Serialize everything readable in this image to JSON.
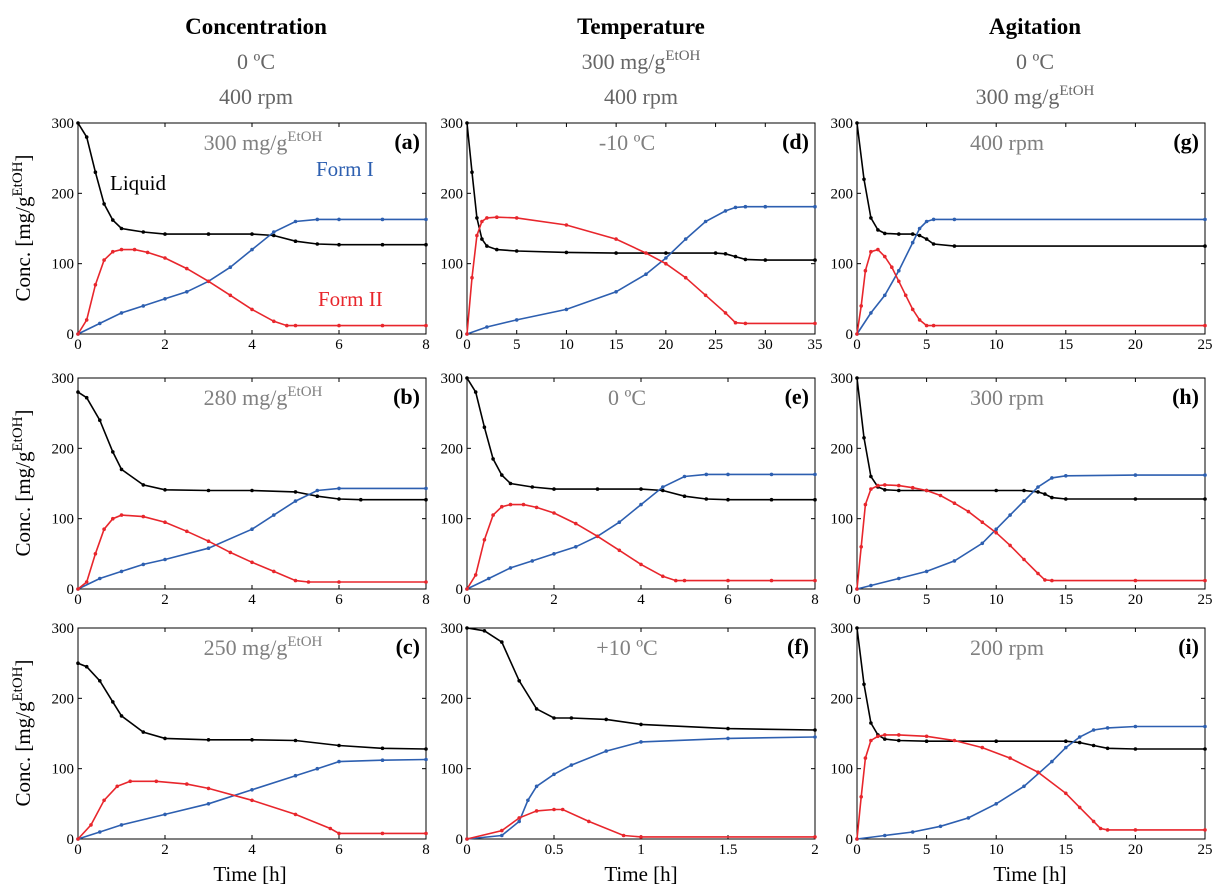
{
  "columns": [
    {
      "title": "Concentration",
      "sub1": "0 ºC",
      "sub2": "400 rpm"
    },
    {
      "title": "Temperature",
      "sub1": "300 mg/g",
      "sub1_sup": "EtOH",
      "sub2": "400 rpm"
    },
    {
      "title": "Agitation",
      "sub1": "0 ºC",
      "sub2": "300 mg/g",
      "sub2_sup": "EtOH"
    }
  ],
  "ylabel": "Conc. [mg/g",
  "ylabel_sup": "EtOH",
  "ylabel_close": "]",
  "xlabel": "Time [h]",
  "annotations": {
    "liquid": "Liquid",
    "form1": "Form I",
    "form2": "Form II"
  },
  "colors": {
    "liquid": "#000000",
    "form1": "#2d5fb0",
    "form2": "#e8262c",
    "label_gray": "#808080"
  },
  "chart_data": [
    {
      "type": "line",
      "panel": "(a)",
      "condition": "300 mg/g",
      "condition_sup": "EtOH",
      "xlim": [
        0,
        8
      ],
      "ylim": [
        0,
        300
      ],
      "xticks": [
        0,
        2,
        4,
        6,
        8
      ],
      "yticks": [
        0,
        100,
        200,
        300
      ],
      "series": [
        {
          "name": "Liquid",
          "x": [
            0,
            0.2,
            0.4,
            0.6,
            0.8,
            1,
            1.5,
            2,
            3,
            4,
            4.5,
            5,
            5.5,
            6,
            7,
            8
          ],
          "y": [
            300,
            280,
            230,
            185,
            162,
            150,
            145,
            142,
            142,
            142,
            140,
            132,
            128,
            127,
            127,
            127
          ]
        },
        {
          "name": "Form I",
          "x": [
            0,
            0.5,
            1,
            1.5,
            2,
            2.5,
            3,
            3.5,
            4,
            4.5,
            5,
            5.5,
            6,
            7,
            8
          ],
          "y": [
            0,
            15,
            30,
            40,
            50,
            60,
            75,
            95,
            120,
            145,
            160,
            163,
            163,
            163,
            163
          ]
        },
        {
          "name": "Form II",
          "x": [
            0,
            0.2,
            0.4,
            0.6,
            0.8,
            1,
            1.3,
            1.6,
            2,
            2.5,
            3,
            3.5,
            4,
            4.5,
            4.8,
            5,
            6,
            7,
            8
          ],
          "y": [
            0,
            20,
            70,
            105,
            117,
            120,
            120,
            116,
            108,
            93,
            75,
            55,
            35,
            18,
            12,
            12,
            12,
            12,
            12
          ]
        }
      ]
    },
    {
      "type": "line",
      "panel": "(b)",
      "condition": "280 mg/g",
      "condition_sup": "EtOH",
      "xlim": [
        0,
        8
      ],
      "ylim": [
        0,
        300
      ],
      "xticks": [
        0,
        2,
        4,
        6,
        8
      ],
      "yticks": [
        0,
        100,
        200,
        300
      ],
      "series": [
        {
          "name": "Liquid",
          "x": [
            0,
            0.2,
            0.5,
            0.8,
            1,
            1.5,
            2,
            3,
            4,
            5,
            5.5,
            6,
            6.5,
            8
          ],
          "y": [
            280,
            272,
            240,
            195,
            170,
            148,
            141,
            140,
            140,
            138,
            132,
            128,
            127,
            127
          ]
        },
        {
          "name": "Form I",
          "x": [
            0,
            0.5,
            1,
            1.5,
            2,
            3,
            4,
            4.5,
            5,
            5.5,
            6,
            8
          ],
          "y": [
            0,
            15,
            25,
            35,
            42,
            58,
            85,
            105,
            125,
            140,
            143,
            143
          ]
        },
        {
          "name": "Form II",
          "x": [
            0,
            0.2,
            0.4,
            0.6,
            0.8,
            1,
            1.5,
            2,
            2.5,
            3,
            3.5,
            4,
            4.5,
            5,
            5.3,
            6,
            8
          ],
          "y": [
            0,
            10,
            50,
            85,
            100,
            105,
            103,
            95,
            82,
            68,
            52,
            38,
            25,
            12,
            10,
            10,
            10
          ]
        }
      ]
    },
    {
      "type": "line",
      "panel": "(c)",
      "condition": "250 mg/g",
      "condition_sup": "EtOH",
      "xlim": [
        0,
        8
      ],
      "ylim": [
        0,
        300
      ],
      "xticks": [
        0,
        2,
        4,
        6,
        8
      ],
      "yticks": [
        0,
        100,
        200,
        300
      ],
      "series": [
        {
          "name": "Liquid",
          "x": [
            0,
            0.2,
            0.5,
            0.8,
            1,
            1.5,
            2,
            3,
            4,
            5,
            6,
            7,
            8
          ],
          "y": [
            250,
            245,
            225,
            195,
            175,
            152,
            143,
            141,
            141,
            140,
            133,
            129,
            128
          ]
        },
        {
          "name": "Form I",
          "x": [
            0,
            0.5,
            1,
            2,
            3,
            4,
            5,
            5.5,
            6,
            7,
            8
          ],
          "y": [
            0,
            10,
            20,
            35,
            50,
            70,
            90,
            100,
            110,
            112,
            113
          ]
        },
        {
          "name": "Form II",
          "x": [
            0,
            0.3,
            0.6,
            0.9,
            1.2,
            1.8,
            2.5,
            3,
            4,
            5,
            5.8,
            6,
            7,
            8
          ],
          "y": [
            0,
            20,
            55,
            75,
            82,
            82,
            78,
            72,
            55,
            35,
            15,
            8,
            8,
            8
          ]
        }
      ]
    },
    {
      "type": "line",
      "panel": "(d)",
      "condition": "-10 ºC",
      "condition_sup": "",
      "xlim": [
        0,
        35
      ],
      "ylim": [
        0,
        300
      ],
      "xticks": [
        0,
        5,
        10,
        15,
        20,
        25,
        30,
        35
      ],
      "yticks": [
        0,
        100,
        200,
        300
      ],
      "series": [
        {
          "name": "Liquid",
          "x": [
            0,
            0.5,
            1,
            1.5,
            2,
            3,
            5,
            10,
            15,
            20,
            25,
            26,
            27,
            28,
            30,
            35
          ],
          "y": [
            300,
            230,
            165,
            135,
            125,
            120,
            118,
            116,
            115,
            115,
            115,
            114,
            110,
            106,
            105,
            105
          ]
        },
        {
          "name": "Form I",
          "x": [
            0,
            2,
            5,
            10,
            15,
            18,
            20,
            22,
            24,
            26,
            27,
            28,
            30,
            35
          ],
          "y": [
            0,
            10,
            20,
            35,
            60,
            85,
            108,
            135,
            160,
            175,
            180,
            181,
            181,
            181
          ]
        },
        {
          "name": "Form II",
          "x": [
            0,
            0.5,
            1,
            1.5,
            2,
            3,
            5,
            10,
            15,
            18,
            20,
            22,
            24,
            26,
            27,
            28,
            35
          ],
          "y": [
            0,
            80,
            140,
            160,
            165,
            166,
            165,
            155,
            135,
            115,
            100,
            80,
            55,
            30,
            16,
            15,
            15
          ]
        }
      ]
    },
    {
      "type": "line",
      "panel": "(e)",
      "condition": "0 ºC",
      "condition_sup": "",
      "xlim": [
        0,
        8
      ],
      "ylim": [
        0,
        300
      ],
      "xticks": [
        0,
        2,
        4,
        6,
        8
      ],
      "yticks": [
        0,
        100,
        200,
        300
      ],
      "series": [
        {
          "name": "Liquid",
          "x": [
            0,
            0.2,
            0.4,
            0.6,
            0.8,
            1,
            1.5,
            2,
            3,
            4,
            4.5,
            5,
            5.5,
            6,
            7,
            8
          ],
          "y": [
            300,
            280,
            230,
            185,
            162,
            150,
            145,
            142,
            142,
            142,
            140,
            132,
            128,
            127,
            127,
            127
          ]
        },
        {
          "name": "Form I",
          "x": [
            0,
            0.5,
            1,
            1.5,
            2,
            2.5,
            3,
            3.5,
            4,
            4.5,
            5,
            5.5,
            6,
            7,
            8
          ],
          "y": [
            0,
            15,
            30,
            40,
            50,
            60,
            75,
            95,
            120,
            145,
            160,
            163,
            163,
            163,
            163
          ]
        },
        {
          "name": "Form II",
          "x": [
            0,
            0.2,
            0.4,
            0.6,
            0.8,
            1,
            1.3,
            1.6,
            2,
            2.5,
            3,
            3.5,
            4,
            4.5,
            4.8,
            5,
            6,
            7,
            8
          ],
          "y": [
            0,
            20,
            70,
            105,
            117,
            120,
            120,
            116,
            108,
            93,
            75,
            55,
            35,
            18,
            12,
            12,
            12,
            12,
            12
          ]
        }
      ]
    },
    {
      "type": "line",
      "panel": "(f)",
      "condition": "+10 ºC",
      "condition_sup": "",
      "xlim": [
        0,
        2
      ],
      "ylim": [
        0,
        300
      ],
      "xticks": [
        0,
        0.5,
        1,
        1.5,
        2
      ],
      "yticks": [
        0,
        100,
        200,
        300
      ],
      "series": [
        {
          "name": "Liquid",
          "x": [
            0,
            0.1,
            0.2,
            0.3,
            0.4,
            0.5,
            0.6,
            0.8,
            1,
            1.5,
            2
          ],
          "y": [
            300,
            296,
            280,
            225,
            185,
            172,
            172,
            170,
            163,
            157,
            155
          ]
        },
        {
          "name": "Form I",
          "x": [
            0,
            0.2,
            0.3,
            0.35,
            0.4,
            0.5,
            0.6,
            0.8,
            1,
            1.5,
            2
          ],
          "y": [
            0,
            5,
            25,
            55,
            75,
            92,
            105,
            125,
            138,
            143,
            145
          ]
        },
        {
          "name": "Form II",
          "x": [
            0,
            0.2,
            0.3,
            0.4,
            0.5,
            0.55,
            0.7,
            0.9,
            1,
            2
          ],
          "y": [
            0,
            12,
            30,
            40,
            42,
            42,
            25,
            5,
            3,
            3
          ]
        }
      ]
    },
    {
      "type": "line",
      "panel": "(g)",
      "condition": "400 rpm",
      "condition_sup": "",
      "xlim": [
        0,
        25
      ],
      "ylim": [
        0,
        300
      ],
      "xticks": [
        0,
        5,
        10,
        15,
        20,
        25
      ],
      "yticks": [
        0,
        100,
        200,
        300
      ],
      "series": [
        {
          "name": "Liquid",
          "x": [
            0,
            0.5,
            1,
            1.5,
            2,
            3,
            4,
            4.5,
            5,
            5.5,
            7,
            25
          ],
          "y": [
            300,
            220,
            165,
            148,
            143,
            142,
            142,
            140,
            135,
            128,
            125,
            125
          ]
        },
        {
          "name": "Form I",
          "x": [
            0,
            1,
            2,
            3,
            4,
            4.5,
            5,
            5.5,
            7,
            25
          ],
          "y": [
            0,
            30,
            55,
            90,
            130,
            150,
            160,
            163,
            163,
            163
          ]
        },
        {
          "name": "Form II",
          "x": [
            0,
            0.3,
            0.6,
            1,
            1.5,
            2,
            2.5,
            3,
            3.5,
            4,
            4.5,
            5,
            5.5,
            25
          ],
          "y": [
            0,
            40,
            90,
            117,
            120,
            110,
            95,
            75,
            55,
            35,
            20,
            12,
            12,
            12
          ]
        }
      ]
    },
    {
      "type": "line",
      "panel": "(h)",
      "condition": "300 rpm",
      "condition_sup": "",
      "xlim": [
        0,
        25
      ],
      "ylim": [
        0,
        300
      ],
      "xticks": [
        0,
        5,
        10,
        15,
        20,
        25
      ],
      "yticks": [
        0,
        100,
        200,
        300
      ],
      "series": [
        {
          "name": "Liquid",
          "x": [
            0,
            0.5,
            1,
            1.5,
            2,
            3,
            5,
            10,
            12,
            13,
            13.5,
            14,
            15,
            20,
            25
          ],
          "y": [
            300,
            215,
            160,
            145,
            141,
            140,
            140,
            140,
            140,
            138,
            135,
            130,
            128,
            128,
            128
          ]
        },
        {
          "name": "Form I",
          "x": [
            0,
            1,
            3,
            5,
            7,
            9,
            10,
            11,
            12,
            13,
            14,
            15,
            20,
            25
          ],
          "y": [
            0,
            5,
            15,
            25,
            40,
            65,
            85,
            105,
            125,
            145,
            158,
            161,
            162,
            162
          ]
        },
        {
          "name": "Form II",
          "x": [
            0,
            0.3,
            0.6,
            1,
            1.5,
            2,
            3,
            4,
            5,
            6,
            7,
            8,
            9,
            10,
            11,
            12,
            13,
            13.5,
            14,
            20,
            25
          ],
          "y": [
            0,
            60,
            120,
            142,
            147,
            148,
            147,
            144,
            140,
            133,
            122,
            110,
            95,
            80,
            62,
            42,
            22,
            13,
            12,
            12,
            12
          ]
        }
      ]
    },
    {
      "type": "line",
      "panel": "(i)",
      "condition": "200 rpm",
      "condition_sup": "",
      "xlim": [
        0,
        25
      ],
      "ylim": [
        0,
        300
      ],
      "xticks": [
        0,
        5,
        10,
        15,
        20,
        25
      ],
      "yticks": [
        0,
        100,
        200,
        300
      ],
      "series": [
        {
          "name": "Liquid",
          "x": [
            0,
            0.5,
            1,
            1.5,
            2,
            3,
            5,
            10,
            15,
            16,
            17,
            18,
            20,
            25
          ],
          "y": [
            300,
            220,
            165,
            148,
            142,
            140,
            139,
            139,
            139,
            137,
            133,
            129,
            128,
            128
          ]
        },
        {
          "name": "Form I",
          "x": [
            0,
            2,
            4,
            6,
            8,
            10,
            12,
            14,
            15,
            16,
            17,
            18,
            20,
            25
          ],
          "y": [
            0,
            5,
            10,
            18,
            30,
            50,
            75,
            110,
            130,
            145,
            155,
            158,
            160,
            160
          ]
        },
        {
          "name": "Form II",
          "x": [
            0,
            0.3,
            0.6,
            1,
            1.5,
            2,
            3,
            5,
            7,
            9,
            11,
            13,
            15,
            16,
            17,
            17.5,
            18,
            20,
            25
          ],
          "y": [
            0,
            60,
            115,
            140,
            146,
            148,
            148,
            146,
            140,
            130,
            115,
            95,
            65,
            45,
            25,
            15,
            13,
            13,
            13
          ]
        }
      ]
    }
  ]
}
